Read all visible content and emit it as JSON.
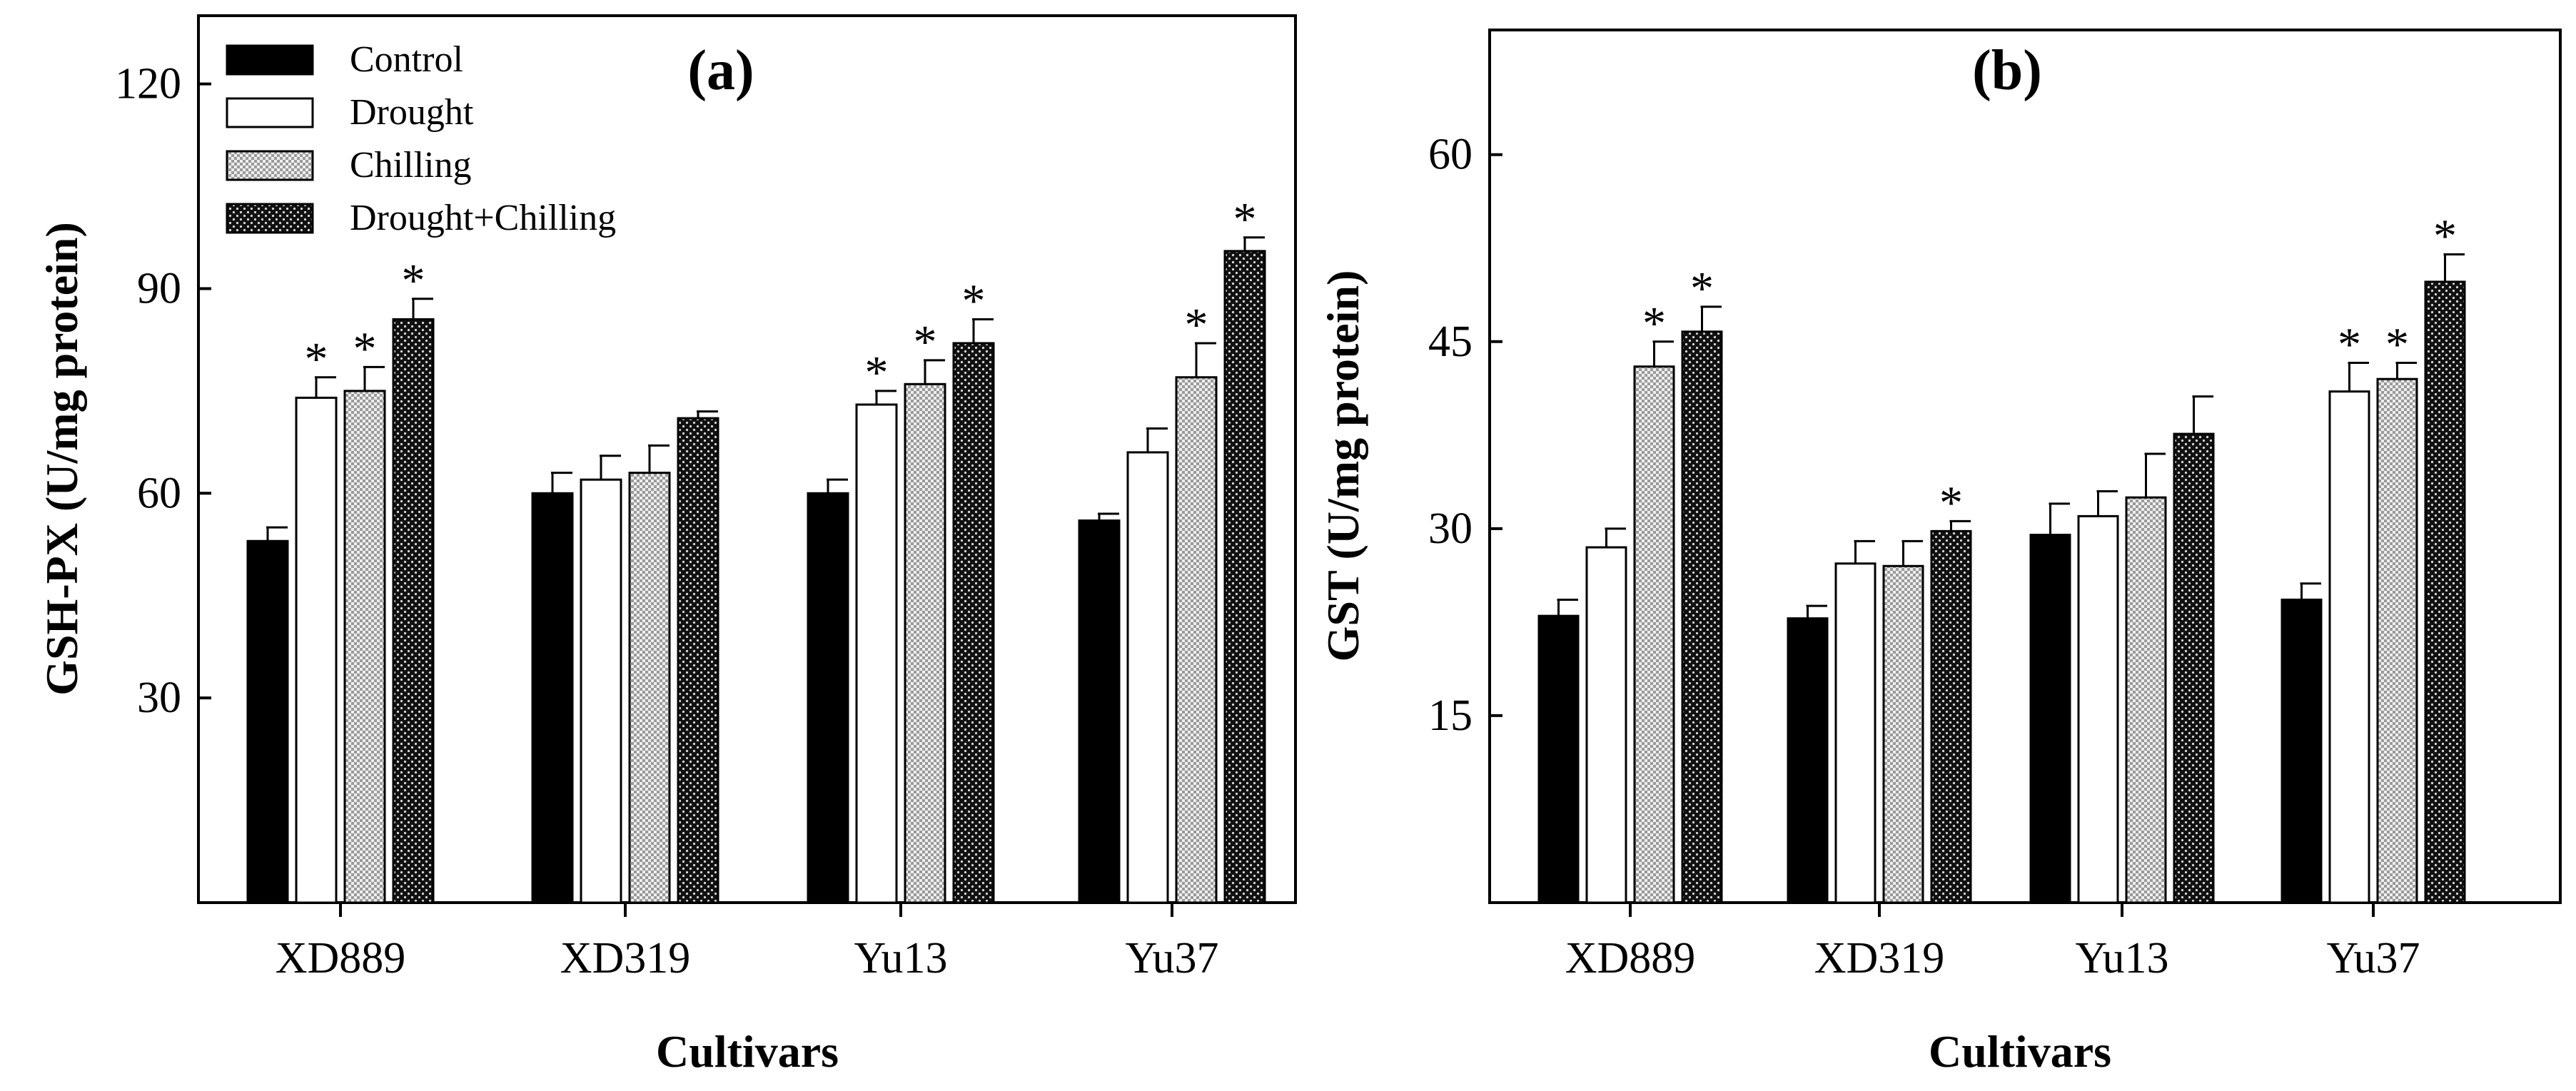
{
  "chart_data": [
    {
      "type": "bar",
      "panel_label": "(a)",
      "title": "",
      "xlabel": "Cultivars",
      "ylabel": "GSH-PX (U/mg protein)",
      "ylim": [
        0,
        130
      ],
      "yticks": [
        30,
        60,
        90,
        120
      ],
      "categories": [
        "XD889",
        "XD319",
        "Yu13",
        "Yu37"
      ],
      "series": [
        {
          "name": "Control",
          "values": [
            53,
            60,
            60,
            56
          ],
          "errors": [
            2,
            3,
            2,
            1
          ],
          "significant": [
            false,
            false,
            false,
            false
          ]
        },
        {
          "name": "Drought",
          "values": [
            74,
            62,
            73,
            66
          ],
          "errors": [
            3,
            3.5,
            2,
            3.5
          ],
          "significant": [
            true,
            false,
            true,
            false
          ]
        },
        {
          "name": "Chilling",
          "values": [
            75,
            63,
            76,
            77
          ],
          "errors": [
            3.5,
            4,
            3.5,
            5
          ],
          "significant": [
            true,
            false,
            true,
            true
          ]
        },
        {
          "name": "Drought+Chilling",
          "values": [
            85.5,
            71,
            82,
            95.5
          ],
          "errors": [
            3,
            1,
            3.5,
            2
          ],
          "significant": [
            true,
            false,
            true,
            true
          ]
        }
      ],
      "significance_marker": "*",
      "legend_position": "top-left",
      "grid": false
    },
    {
      "type": "bar",
      "panel_label": "(b)",
      "title": "",
      "xlabel": "Cultivars",
      "ylabel": "GST (U/mg protein)",
      "ylim": [
        0,
        70
      ],
      "yticks": [
        15,
        30,
        45,
        60
      ],
      "categories": [
        "XD889",
        "XD319",
        "Yu13",
        "Yu37"
      ],
      "series": [
        {
          "name": "Control",
          "values": [
            23,
            22.8,
            29.5,
            24.3
          ],
          "errors": [
            1.3,
            1,
            2.5,
            1.3
          ],
          "significant": [
            false,
            false,
            false,
            false
          ]
        },
        {
          "name": "Drought",
          "values": [
            28.5,
            27.2,
            31,
            41
          ],
          "errors": [
            1.5,
            1.8,
            2,
            2.3
          ],
          "significant": [
            false,
            false,
            false,
            true
          ]
        },
        {
          "name": "Chilling",
          "values": [
            43,
            27,
            32.5,
            42
          ],
          "errors": [
            2,
            2,
            3.5,
            1.3
          ],
          "significant": [
            true,
            false,
            false,
            true
          ]
        },
        {
          "name": "Drought+Chilling",
          "values": [
            45.8,
            29.8,
            37.6,
            49.8
          ],
          "errors": [
            2,
            0.8,
            3,
            2.2
          ],
          "significant": [
            true,
            true,
            false,
            true
          ]
        }
      ],
      "significance_marker": "*",
      "legend_position": "none",
      "grid": false
    }
  ]
}
